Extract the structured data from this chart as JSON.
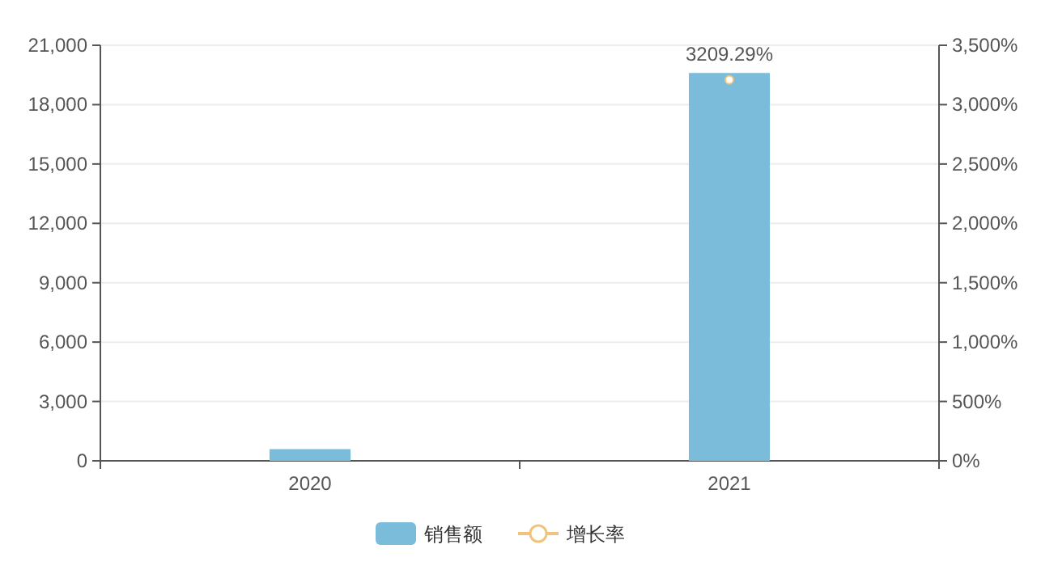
{
  "chart_data": {
    "type": "bar",
    "categories": [
      "2020",
      "2021"
    ],
    "series": [
      {
        "name": "销售额",
        "color": "#7bbcda",
        "values": [
          590,
          19600
        ]
      },
      {
        "name": "增长率",
        "type": "line",
        "axis": "y2",
        "color": "#f2c37c",
        "marker": "circle",
        "values": [
          null,
          3209.29
        ],
        "value_labels": [
          null,
          "3209.29%"
        ]
      }
    ],
    "ylim": [
      0,
      21000
    ],
    "yticks": [
      {
        "value": 0,
        "label": "0"
      },
      {
        "value": 3000,
        "label": "3,000"
      },
      {
        "value": 6000,
        "label": "6,000"
      },
      {
        "value": 9000,
        "label": "9,000"
      },
      {
        "value": 12000,
        "label": "12,000"
      },
      {
        "value": 15000,
        "label": "15,000"
      },
      {
        "value": 18000,
        "label": "18,000"
      },
      {
        "value": 21000,
        "label": "21,000"
      }
    ],
    "y2lim": [
      0,
      3500
    ],
    "y2ticks": [
      {
        "value": 0,
        "label": "0%"
      },
      {
        "value": 500,
        "label": "500%"
      },
      {
        "value": 1000,
        "label": "1,000%"
      },
      {
        "value": 1500,
        "label": "1,500%"
      },
      {
        "value": 2000,
        "label": "2,000%"
      },
      {
        "value": 2500,
        "label": "2,500%"
      },
      {
        "value": 3000,
        "label": "3,000%"
      },
      {
        "value": 3500,
        "label": "3,500%"
      }
    ],
    "grid": "y",
    "legend": "bottom"
  }
}
